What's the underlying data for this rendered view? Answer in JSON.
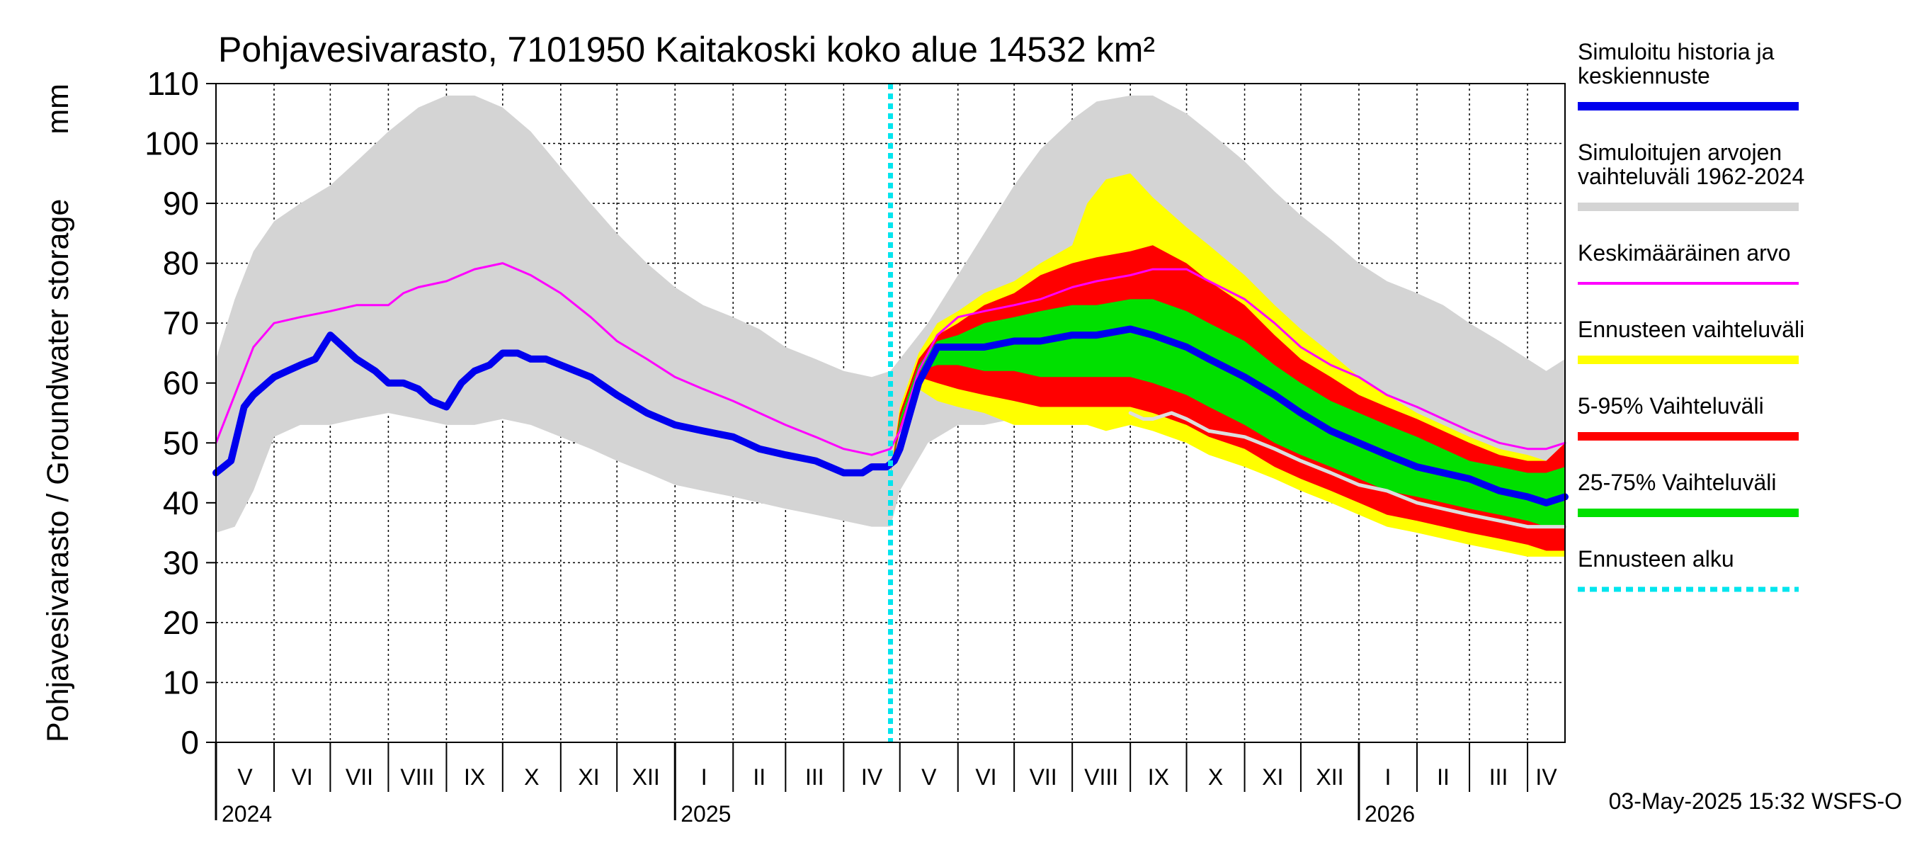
{
  "chart_data": {
    "type": "area",
    "title": "Pohjavesivarasto, 7101950 Kaitakoski koko alue 14532 km²",
    "ylabel": "Pohjavesivarasto / Groundwater storage",
    "yunit": "mm",
    "ylim": [
      0,
      110
    ],
    "yticks": [
      0,
      10,
      20,
      30,
      40,
      50,
      60,
      70,
      80,
      90,
      100,
      110
    ],
    "xlim_days": [
      0,
      720
    ],
    "grid": true,
    "forecast_start_day": 360,
    "months": [
      {
        "label": "V",
        "start": 0,
        "end": 31
      },
      {
        "label": "VI",
        "start": 31,
        "end": 61
      },
      {
        "label": "VII",
        "start": 61,
        "end": 92
      },
      {
        "label": "VIII",
        "start": 92,
        "end": 123
      },
      {
        "label": "IX",
        "start": 123,
        "end": 153
      },
      {
        "label": "X",
        "start": 153,
        "end": 184
      },
      {
        "label": "XI",
        "start": 184,
        "end": 214
      },
      {
        "label": "XII",
        "start": 214,
        "end": 245
      },
      {
        "label": "I",
        "start": 245,
        "end": 276
      },
      {
        "label": "II",
        "start": 276,
        "end": 304
      },
      {
        "label": "III",
        "start": 304,
        "end": 335
      },
      {
        "label": "IV",
        "start": 335,
        "end": 365
      },
      {
        "label": "V",
        "start": 365,
        "end": 396
      },
      {
        "label": "VI",
        "start": 396,
        "end": 426
      },
      {
        "label": "VII",
        "start": 426,
        "end": 457
      },
      {
        "label": "VIII",
        "start": 457,
        "end": 488
      },
      {
        "label": "IX",
        "start": 488,
        "end": 518
      },
      {
        "label": "X",
        "start": 518,
        "end": 549
      },
      {
        "label": "XI",
        "start": 549,
        "end": 579
      },
      {
        "label": "XII",
        "start": 579,
        "end": 610
      },
      {
        "label": "I",
        "start": 610,
        "end": 641
      },
      {
        "label": "II",
        "start": 641,
        "end": 669
      },
      {
        "label": "III",
        "start": 669,
        "end": 700
      },
      {
        "label": "IV",
        "start": 700,
        "end": 720
      }
    ],
    "years": [
      {
        "label": "2024",
        "day": 0
      },
      {
        "label": "2025",
        "day": 245
      },
      {
        "label": "2026",
        "day": 610
      }
    ],
    "series": [
      {
        "name": "Simuloitujen arvojen vaihteluväli 1962-2024",
        "color": "#d4d4d4",
        "kind": "band",
        "x": [
          0,
          10,
          20,
          31,
          45,
          61,
          75,
          92,
          108,
          123,
          138,
          153,
          168,
          184,
          200,
          214,
          230,
          245,
          260,
          276,
          290,
          304,
          320,
          335,
          350,
          360,
          365,
          380,
          396,
          410,
          426,
          440,
          457,
          470,
          488,
          500,
          518,
          530,
          549,
          565,
          579,
          595,
          610,
          625,
          641,
          655,
          669,
          685,
          700,
          710,
          720
        ],
        "upper": [
          64,
          74,
          82,
          87,
          90,
          93,
          97,
          102,
          106,
          108,
          108,
          106,
          102,
          96,
          90,
          85,
          80,
          76,
          73,
          71,
          69,
          66,
          64,
          62,
          61,
          62,
          64,
          70,
          78,
          85,
          93,
          99,
          104,
          107,
          108,
          108,
          105,
          102,
          97,
          92,
          88,
          84,
          80,
          77,
          75,
          73,
          70,
          67,
          64,
          62,
          64
        ],
        "lower": [
          35,
          36,
          42,
          51,
          53,
          53,
          54,
          55,
          54,
          53,
          53,
          54,
          53,
          51,
          49,
          47,
          45,
          43,
          42,
          41,
          40,
          39,
          38,
          37,
          36,
          36,
          42,
          50,
          53,
          53,
          54,
          55,
          54,
          53,
          54,
          53,
          52,
          50,
          48,
          46,
          44,
          42,
          41,
          40,
          39,
          38,
          37,
          36,
          36,
          35,
          35
        ]
      },
      {
        "name": "Ennusteen vaihteluväli",
        "color": "#ffff00",
        "kind": "band",
        "x": [
          360,
          365,
          375,
          385,
          396,
          410,
          426,
          440,
          457,
          465,
          475,
          488,
          500,
          518,
          530,
          549,
          565,
          579,
          595,
          610,
          625,
          641,
          655,
          669,
          685,
          700,
          710,
          720
        ],
        "upper": [
          45,
          56,
          65,
          70,
          72,
          75,
          77,
          80,
          83,
          90,
          94,
          95,
          91,
          86,
          83,
          78,
          73,
          69,
          65,
          61,
          58,
          55,
          53,
          51,
          49,
          48,
          47,
          50
        ],
        "lower": [
          45,
          52,
          59,
          57,
          56,
          55,
          53,
          53,
          53,
          53,
          52,
          53,
          52,
          50,
          48,
          46,
          44,
          42,
          40,
          38,
          36,
          35,
          34,
          33,
          32,
          31,
          31,
          31
        ]
      },
      {
        "name": "5-95% Vaihteluväli",
        "color": "#ff0000",
        "kind": "band",
        "x": [
          360,
          365,
          375,
          385,
          396,
          410,
          426,
          440,
          457,
          470,
          488,
          500,
          518,
          530,
          549,
          565,
          579,
          595,
          610,
          625,
          641,
          655,
          669,
          685,
          700,
          710,
          720
        ],
        "upper": [
          45,
          55,
          64,
          68,
          70,
          73,
          75,
          78,
          80,
          81,
          82,
          83,
          80,
          77,
          73,
          68,
          64,
          61,
          58,
          56,
          54,
          52,
          50,
          48,
          47,
          47,
          50
        ],
        "lower": [
          45,
          52,
          61,
          60,
          59,
          58,
          57,
          56,
          56,
          56,
          56,
          55,
          53,
          51,
          49,
          46,
          44,
          42,
          40,
          38,
          37,
          36,
          35,
          34,
          33,
          32,
          32
        ]
      },
      {
        "name": "25-75% Vaihteluväli",
        "color": "#00e000",
        "kind": "band",
        "x": [
          360,
          365,
          375,
          385,
          396,
          410,
          426,
          440,
          457,
          470,
          488,
          500,
          518,
          530,
          549,
          565,
          579,
          595,
          610,
          625,
          641,
          655,
          669,
          685,
          700,
          710,
          720
        ],
        "upper": [
          45,
          54,
          63,
          67,
          68,
          70,
          71,
          72,
          73,
          73,
          74,
          74,
          72,
          70,
          67,
          63,
          60,
          57,
          55,
          53,
          51,
          49,
          47,
          46,
          45,
          45,
          46
        ],
        "lower": [
          45,
          53,
          62,
          63,
          63,
          62,
          62,
          61,
          61,
          61,
          61,
          60,
          58,
          56,
          53,
          50,
          48,
          46,
          44,
          42,
          41,
          40,
          39,
          38,
          37,
          36,
          36
        ]
      },
      {
        "name": "Keskimääräinen arvo",
        "color": "#ff00ff",
        "kind": "line",
        "x": [
          0,
          10,
          20,
          31,
          45,
          61,
          75,
          92,
          100,
          108,
          123,
          138,
          153,
          168,
          184,
          200,
          214,
          230,
          245,
          260,
          276,
          290,
          304,
          320,
          335,
          350,
          360,
          365,
          375,
          385,
          396,
          410,
          426,
          440,
          457,
          470,
          488,
          500,
          518,
          530,
          549,
          565,
          579,
          595,
          610,
          625,
          641,
          655,
          669,
          685,
          700,
          710,
          720
        ],
        "values": [
          50,
          58,
          66,
          70,
          71,
          72,
          73,
          73,
          75,
          76,
          77,
          79,
          80,
          78,
          75,
          71,
          67,
          64,
          61,
          59,
          57,
          55,
          53,
          51,
          49,
          48,
          49,
          52,
          62,
          68,
          71,
          72,
          73,
          74,
          76,
          77,
          78,
          79,
          79,
          77,
          74,
          70,
          66,
          63,
          61,
          58,
          56,
          54,
          52,
          50,
          49,
          49,
          50
        ]
      },
      {
        "name": "Simuloitu historia ja keskiennuste",
        "color": "#0000ee",
        "kind": "line",
        "x": [
          0,
          8,
          15,
          20,
          31,
          38,
          45,
          53,
          61,
          68,
          75,
          85,
          92,
          100,
          108,
          115,
          123,
          131,
          138,
          146,
          153,
          161,
          168,
          176,
          184,
          200,
          214,
          230,
          245,
          260,
          276,
          290,
          304,
          320,
          335,
          345,
          350,
          358,
          362,
          365,
          375,
          385,
          396,
          410,
          426,
          440,
          457,
          470,
          488,
          500,
          518,
          530,
          549,
          565,
          579,
          595,
          610,
          625,
          641,
          655,
          669,
          685,
          700,
          710,
          720
        ],
        "values": [
          45,
          47,
          56,
          58,
          61,
          62,
          63,
          64,
          68,
          66,
          64,
          62,
          60,
          60,
          59,
          57,
          56,
          60,
          62,
          63,
          65,
          65,
          64,
          64,
          63,
          61,
          58,
          55,
          53,
          52,
          51,
          49,
          48,
          47,
          45,
          45,
          46,
          46,
          47,
          49,
          60,
          66,
          66,
          66,
          67,
          67,
          68,
          68,
          69,
          68,
          66,
          64,
          61,
          58,
          55,
          52,
          50,
          48,
          46,
          45,
          44,
          42,
          41,
          40,
          41
        ]
      },
      {
        "name": "Median forecast (light line)",
        "color": "#dddddd",
        "kind": "line",
        "x": [
          488,
          495,
          500,
          510,
          518,
          530,
          549,
          565,
          579,
          595,
          610,
          625,
          641,
          655,
          669,
          685,
          700,
          710,
          720
        ],
        "values": [
          55,
          54,
          54,
          55,
          54,
          52,
          51,
          49,
          47,
          45,
          43,
          42,
          40,
          39,
          38,
          37,
          36,
          36,
          36
        ]
      }
    ],
    "legend": [
      {
        "label_lines": [
          "Simuloitu historia ja",
          "keskiennuste"
        ],
        "color": "#0000ee",
        "style": "solid"
      },
      {
        "label_lines": [
          "Simuloitujen arvojen",
          "vaihteluväli 1962-2024"
        ],
        "color": "#d4d4d4",
        "style": "solid"
      },
      {
        "label_lines": [
          "Keskimääräinen arvo"
        ],
        "color": "#ff00ff",
        "style": "thin"
      },
      {
        "label_lines": [
          "Ennusteen vaihteluväli"
        ],
        "color": "#ffff00",
        "style": "solid"
      },
      {
        "label_lines": [
          "5-95% Vaihteluväli"
        ],
        "color": "#ff0000",
        "style": "solid"
      },
      {
        "label_lines": [
          "25-75% Vaihteluväli"
        ],
        "color": "#00e000",
        "style": "solid"
      },
      {
        "label_lines": [
          "Ennusteen alku"
        ],
        "color": "#00e5ee",
        "style": "dashed"
      }
    ],
    "forecast_line_color": "#00e5ee",
    "timestamp": "03-May-2025 15:32 WSFS-O"
  }
}
